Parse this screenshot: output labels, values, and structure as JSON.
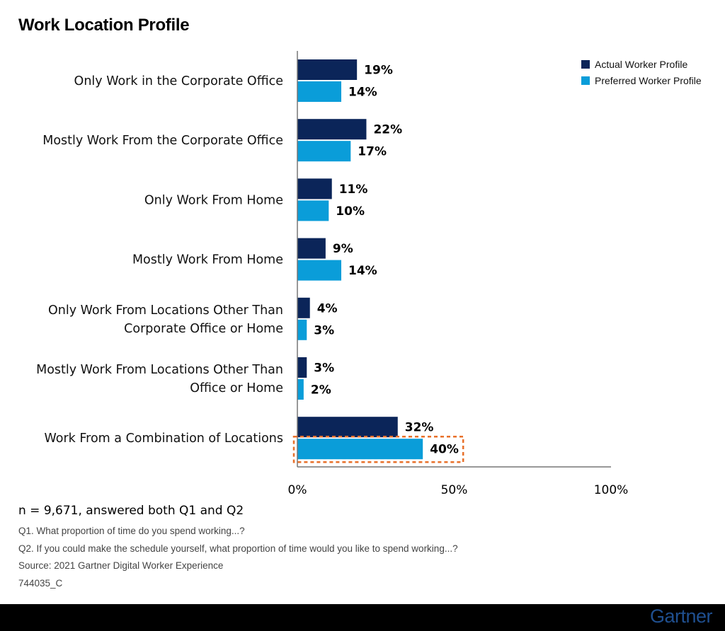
{
  "colors": {
    "actual": "#0b2559",
    "preferred": "#0a9dd9",
    "highlight": "#e8702a",
    "axis": "#777777"
  },
  "footnotes": {
    "sample": "n = 9,671, answered both Q1 and Q2",
    "q1": "Q1. What proportion of time do you spend working...?",
    "q2": "Q2. If you could make the schedule yourself, what proportion of time would you like to spend working...?",
    "source": "Source: 2021 Gartner Digital Worker Experience",
    "code": "744035_C"
  },
  "brand": "Gartner",
  "chart_data": {
    "type": "bar",
    "orientation": "horizontal",
    "title": "Work Location Profile",
    "categories": [
      [
        "Only Work in the Corporate Office"
      ],
      [
        "Mostly Work From the Corporate Office"
      ],
      [
        "Only Work From Home"
      ],
      [
        "Mostly Work From Home"
      ],
      [
        "Only Work From Locations Other Than",
        "Corporate Office or Home"
      ],
      [
        "Mostly Work From Locations Other Than",
        "Office or Home"
      ],
      [
        "Work From a Combination of Locations"
      ]
    ],
    "series": [
      {
        "name": "Actual Worker Profile",
        "values": [
          19,
          22,
          11,
          9,
          4,
          3,
          32
        ],
        "labels": [
          "19%",
          "22%",
          "11%",
          "9%",
          "4%",
          "3%",
          "32%"
        ]
      },
      {
        "name": "Preferred Worker Profile",
        "values": [
          14,
          17,
          10,
          14,
          3,
          2,
          40
        ],
        "labels": [
          "14%",
          "17%",
          "10%",
          "14%",
          "3%",
          "2%",
          "40%"
        ]
      }
    ],
    "xlim": [
      0,
      100
    ],
    "xticks": [
      0,
      50,
      100
    ],
    "xtick_labels": [
      "0%",
      "50%",
      "100%"
    ],
    "legend_position": "top-right",
    "highlight": {
      "category_index": 6,
      "series_index": 1
    }
  }
}
